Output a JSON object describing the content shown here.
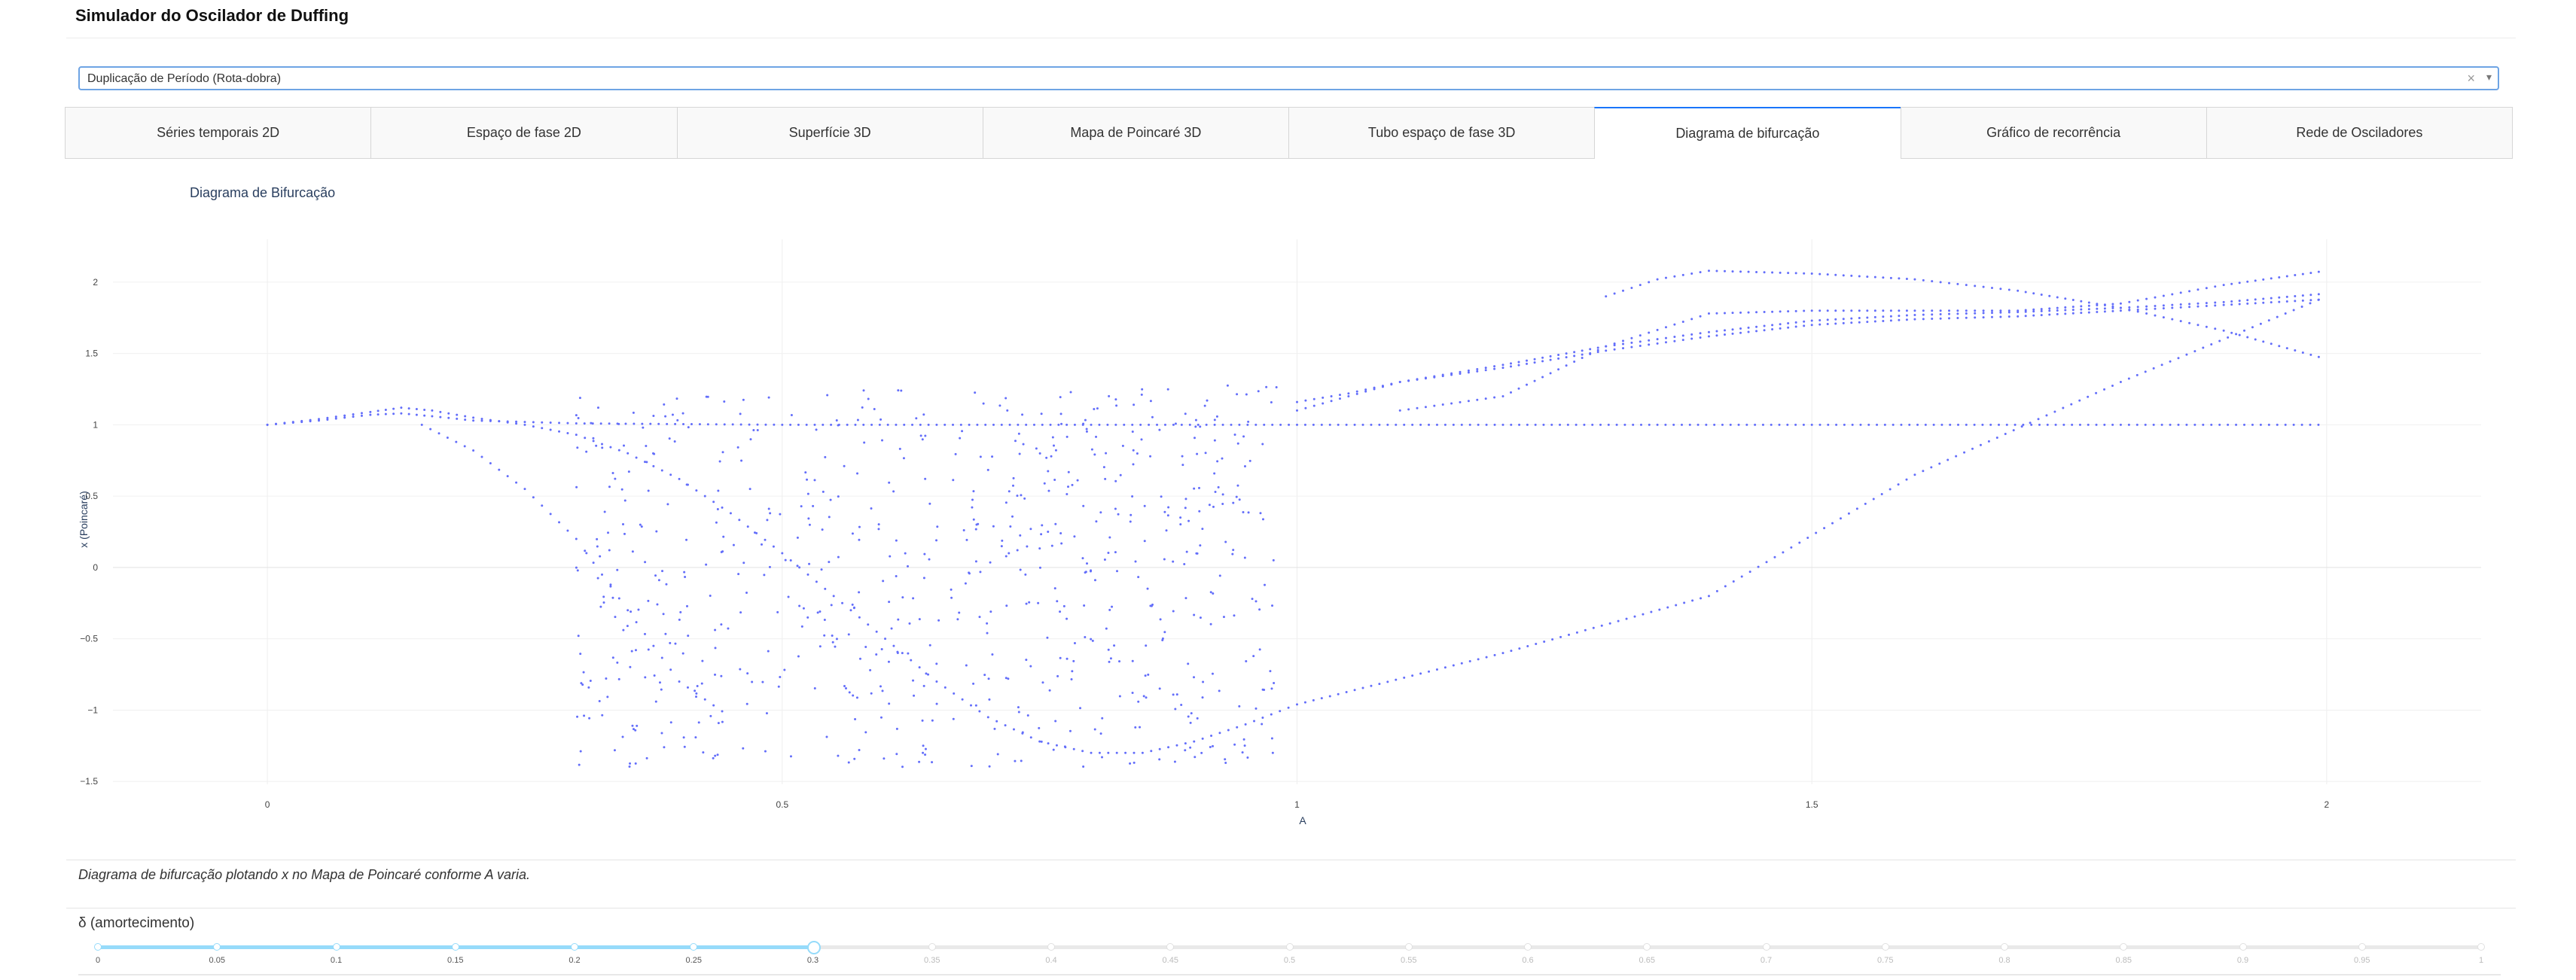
{
  "app": {
    "title": "Simulador do Oscilador de Duffing"
  },
  "dropdown": {
    "value": "Duplicação de Período (Rota-dobra)",
    "clear_glyph": "×",
    "arrow_glyph": "▾"
  },
  "tabs": [
    {
      "label": "Séries temporais 2D",
      "active": false
    },
    {
      "label": "Espaço de fase 2D",
      "active": false
    },
    {
      "label": "Superfície 3D",
      "active": false
    },
    {
      "label": "Mapa de Poincaré 3D",
      "active": false
    },
    {
      "label": "Tubo espaço de fase 3D",
      "active": false
    },
    {
      "label": "Diagrama de bifurcação",
      "active": true
    },
    {
      "label": "Gráfico de recorrência",
      "active": false
    },
    {
      "label": "Rede de Osciladores",
      "active": false
    }
  ],
  "chart_data": {
    "type": "scatter",
    "title": "Diagrama de Bifurcação",
    "xlabel": "A",
    "ylabel": "x (Poincaré)",
    "xlim": [
      -0.15,
      2.15
    ],
    "ylim": [
      -1.52,
      2.3
    ],
    "xticks": [
      0,
      0.5,
      1,
      1.5,
      2
    ],
    "xtick_labels": [
      "0",
      "0.5",
      "1",
      "1.5",
      "2"
    ],
    "yticks": [
      2,
      1.5,
      1,
      0.5,
      0,
      -0.5,
      -1,
      -1.5
    ],
    "ytick_labels": [
      "2",
      "1.5",
      "1",
      "0.5",
      "0",
      "−0.5",
      "−1",
      "−1.5"
    ],
    "grid": true,
    "marker_color": "#636efa",
    "series": [
      {
        "x": [
          0,
          0.05,
          0.1,
          0.13,
          0.16,
          0.2,
          0.3,
          0.5,
          0.8,
          1,
          1.2,
          1.5,
          1.8,
          2
        ],
        "y": [
          1,
          1.03,
          1.07,
          1.08,
          1.06,
          1.03,
          1.01,
          1.0,
          1.0,
          1.0,
          1.0,
          1.0,
          1.0,
          1.0
        ]
      },
      {
        "x": [
          0,
          0.05,
          0.1,
          0.13,
          0.16,
          0.2,
          0.25,
          0.3,
          0.35,
          0.4,
          0.45,
          0.5,
          0.55,
          0.6,
          0.65,
          0.7,
          0.75,
          0.8,
          0.85,
          0.9,
          0.95,
          1.0
        ],
        "y": [
          1,
          1.04,
          1.09,
          1.12,
          1.1,
          1.05,
          1.0,
          0.93,
          0.8,
          0.62,
          0.38,
          0.1,
          -0.2,
          -0.5,
          -0.8,
          -1.05,
          -1.22,
          -1.3,
          -1.3,
          -1.22,
          -1.1,
          -0.96
        ]
      },
      {
        "x": [
          1.0,
          1.2,
          1.4,
          1.6,
          1.8,
          2.0
        ],
        "y": [
          -0.96,
          -0.6,
          -0.2,
          0.65,
          1.3,
          1.9
        ]
      },
      {
        "x": [
          1.0,
          1.05,
          1.1,
          1.2,
          1.3,
          1.4,
          1.5,
          1.6,
          1.7,
          1.8,
          1.9,
          2.0
        ],
        "y": [
          1.1,
          1.2,
          1.3,
          1.4,
          1.52,
          1.62,
          1.7,
          1.74,
          1.76,
          1.8,
          1.84,
          1.88
        ]
      },
      {
        "x": [
          1.0,
          1.05,
          1.1,
          1.2,
          1.3,
          1.4,
          1.5,
          1.6,
          1.7,
          1.8,
          1.9,
          2.0
        ],
        "y": [
          1.16,
          1.22,
          1.3,
          1.42,
          1.55,
          1.65,
          1.73,
          1.77,
          1.79,
          1.82,
          1.86,
          1.92
        ]
      },
      {
        "x": [
          1.1,
          1.2,
          1.3,
          1.4,
          1.5,
          1.6,
          1.7,
          1.8,
          1.9,
          2.0
        ],
        "y": [
          1.1,
          1.2,
          1.55,
          1.78,
          1.8,
          1.8,
          1.8,
          1.85,
          1.98,
          2.08
        ]
      },
      {
        "x": [
          1.3,
          1.35,
          1.4,
          1.5,
          1.6,
          1.7,
          1.8,
          1.9,
          2.0
        ],
        "y": [
          1.9,
          2.02,
          2.08,
          2.06,
          2.02,
          1.94,
          1.82,
          1.66,
          1.46
        ]
      },
      {
        "x": [
          0.15,
          0.2,
          0.25,
          0.3,
          0.35,
          0.4,
          0.45
        ],
        "y": [
          1.0,
          0.82,
          0.55,
          0.2,
          -0.3,
          -0.8,
          -1.05
        ]
      }
    ]
  },
  "description": "Diagrama de bifurcação plotando x no Mapa de Poincaré conforme A varia.",
  "slider": {
    "label": "δ (amortecimento)",
    "value": 0.3,
    "min": 0,
    "max": 1,
    "ticks": [
      "0",
      "0.05",
      "0.1",
      "0.15",
      "0.2",
      "0.25",
      "0.3",
      "0.35",
      "0.4",
      "0.45",
      "0.5",
      "0.55",
      "0.6",
      "0.65",
      "0.7",
      "0.75",
      "0.8",
      "0.85",
      "0.9",
      "0.95",
      "1"
    ],
    "active_color": "#96dbfa"
  }
}
